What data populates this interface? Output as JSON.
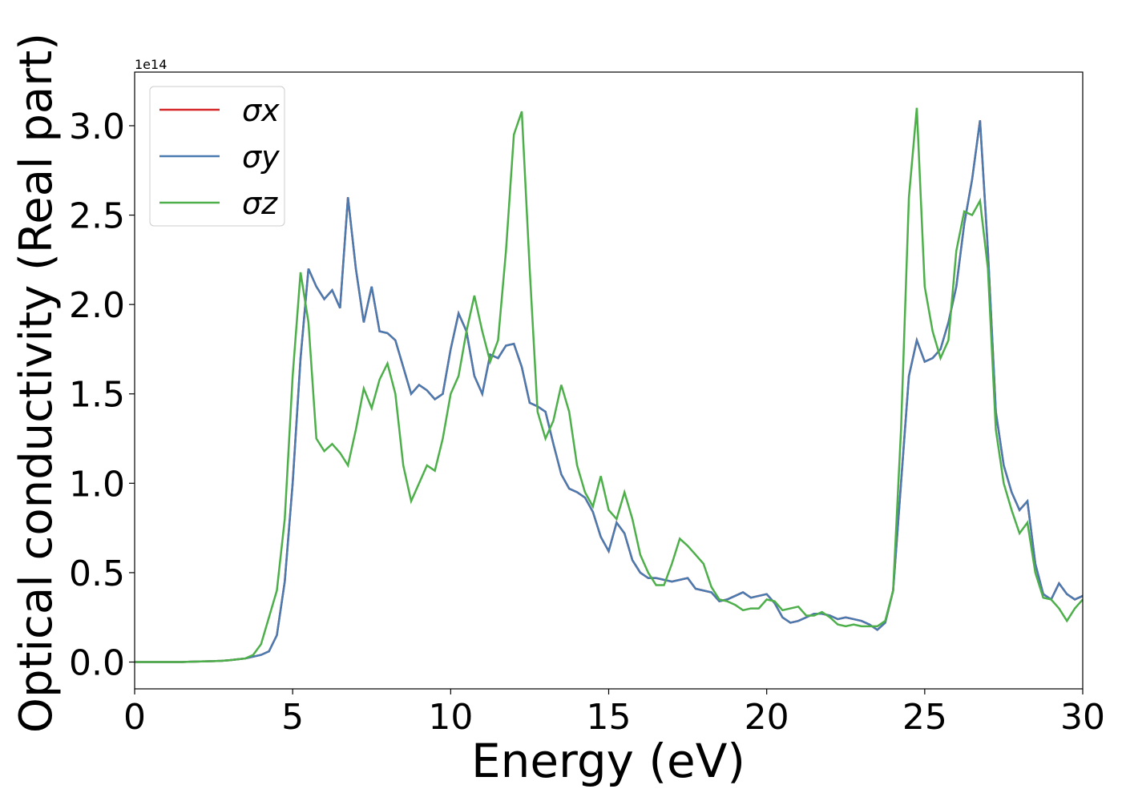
{
  "chart_data": {
    "type": "line",
    "xlabel": "Energy (eV)",
    "ylabel": "Optical conductivity (Real part)",
    "offset_label": "1e14",
    "xlim": [
      0,
      30
    ],
    "xticks": [
      0,
      5,
      10,
      15,
      20,
      25,
      30
    ],
    "ylim": [
      -0.15,
      3.3
    ],
    "yticks": [
      {
        "value": 0,
        "label": "0.0"
      },
      0.5,
      {
        "value": 1,
        "label": "1.0"
      },
      1.5,
      {
        "value": 2,
        "label": "2.0"
      },
      2.5,
      {
        "value": 3,
        "label": "3.0"
      }
    ],
    "legend": "upper left",
    "x": [
      0,
      0.25,
      0.5,
      0.75,
      1,
      1.25,
      1.5,
      1.75,
      2,
      2.25,
      2.5,
      2.75,
      3,
      3.25,
      3.5,
      3.75,
      4,
      4.25,
      4.5,
      4.75,
      5,
      5.25,
      5.5,
      5.75,
      6,
      6.25,
      6.5,
      6.75,
      7,
      7.25,
      7.5,
      7.75,
      8,
      8.25,
      8.5,
      8.75,
      9,
      9.25,
      9.5,
      9.75,
      10,
      10.25,
      10.5,
      10.75,
      11,
      11.25,
      11.5,
      11.75,
      12,
      12.25,
      12.5,
      12.75,
      13,
      13.25,
      13.5,
      13.75,
      14,
      14.25,
      14.5,
      14.75,
      15,
      15.25,
      15.5,
      15.75,
      16,
      16.25,
      16.5,
      16.75,
      17,
      17.25,
      17.5,
      17.75,
      18,
      18.25,
      18.5,
      18.75,
      19,
      19.25,
      19.5,
      19.75,
      20,
      20.25,
      20.5,
      20.75,
      21,
      21.25,
      21.5,
      21.75,
      22,
      22.25,
      22.5,
      22.75,
      23,
      23.25,
      23.5,
      23.75,
      24,
      24.25,
      24.5,
      24.75,
      25,
      25.25,
      25.5,
      25.75,
      26,
      26.25,
      26.5,
      26.75,
      27,
      27.25,
      27.5,
      27.75,
      28,
      28.25,
      28.5,
      28.75,
      29,
      29.25,
      29.5,
      29.75,
      30
    ],
    "series": [
      {
        "name": "σx",
        "color": "#d62728",
        "values": [
          0,
          0,
          0,
          0,
          0,
          0,
          0,
          0.002,
          0.003,
          0.004,
          0.005,
          0.007,
          0.01,
          0.015,
          0.02,
          0.03,
          0.04,
          0.06,
          0.15,
          0.45,
          1.0,
          1.7,
          2.2,
          2.1,
          2.03,
          2.08,
          1.98,
          2.6,
          2.2,
          1.9,
          2.1,
          1.85,
          1.84,
          1.8,
          1.65,
          1.5,
          1.55,
          1.52,
          1.47,
          1.5,
          1.75,
          1.95,
          1.85,
          1.6,
          1.5,
          1.72,
          1.7,
          1.77,
          1.78,
          1.65,
          1.45,
          1.43,
          1.4,
          1.22,
          1.05,
          0.97,
          0.95,
          0.92,
          0.84,
          0.7,
          0.62,
          0.78,
          0.72,
          0.57,
          0.5,
          0.47,
          0.47,
          0.46,
          0.45,
          0.46,
          0.47,
          0.41,
          0.4,
          0.39,
          0.34,
          0.35,
          0.37,
          0.39,
          0.36,
          0.37,
          0.38,
          0.33,
          0.25,
          0.22,
          0.23,
          0.25,
          0.27,
          0.27,
          0.26,
          0.24,
          0.25,
          0.24,
          0.23,
          0.21,
          0.18,
          0.22,
          0.4,
          1.0,
          1.6,
          1.8,
          1.68,
          1.7,
          1.75,
          1.9,
          2.1,
          2.45,
          2.7,
          3.03,
          2.3,
          1.4,
          1.1,
          0.95,
          0.85,
          0.9,
          0.55,
          0.38,
          0.35,
          0.44,
          0.38,
          0.35,
          0.37
        ]
      },
      {
        "name": "σy",
        "color": "#4a7bb0",
        "values": [
          0,
          0,
          0,
          0,
          0,
          0,
          0,
          0.002,
          0.003,
          0.004,
          0.005,
          0.007,
          0.01,
          0.015,
          0.02,
          0.03,
          0.04,
          0.06,
          0.15,
          0.45,
          1.0,
          1.7,
          2.2,
          2.1,
          2.03,
          2.08,
          1.98,
          2.6,
          2.2,
          1.9,
          2.1,
          1.85,
          1.84,
          1.8,
          1.65,
          1.5,
          1.55,
          1.52,
          1.47,
          1.5,
          1.75,
          1.95,
          1.85,
          1.6,
          1.5,
          1.72,
          1.7,
          1.77,
          1.78,
          1.65,
          1.45,
          1.43,
          1.4,
          1.22,
          1.05,
          0.97,
          0.95,
          0.92,
          0.84,
          0.7,
          0.62,
          0.78,
          0.72,
          0.57,
          0.5,
          0.47,
          0.47,
          0.46,
          0.45,
          0.46,
          0.47,
          0.41,
          0.4,
          0.39,
          0.34,
          0.35,
          0.37,
          0.39,
          0.36,
          0.37,
          0.38,
          0.33,
          0.25,
          0.22,
          0.23,
          0.25,
          0.27,
          0.27,
          0.26,
          0.24,
          0.25,
          0.24,
          0.23,
          0.21,
          0.18,
          0.22,
          0.4,
          1.0,
          1.6,
          1.8,
          1.68,
          1.7,
          1.75,
          1.9,
          2.1,
          2.45,
          2.7,
          3.03,
          2.3,
          1.4,
          1.1,
          0.95,
          0.85,
          0.9,
          0.55,
          0.38,
          0.35,
          0.44,
          0.38,
          0.35,
          0.37
        ]
      },
      {
        "name": "σz",
        "color": "#4daf4a",
        "values": [
          0,
          0,
          0,
          0,
          0,
          0,
          0,
          0.002,
          0.003,
          0.004,
          0.005,
          0.007,
          0.01,
          0.015,
          0.02,
          0.04,
          0.1,
          0.25,
          0.4,
          0.8,
          1.6,
          2.18,
          1.9,
          1.25,
          1.18,
          1.22,
          1.17,
          1.1,
          1.3,
          1.53,
          1.42,
          1.58,
          1.67,
          1.5,
          1.1,
          0.9,
          1.0,
          1.1,
          1.07,
          1.25,
          1.5,
          1.6,
          1.85,
          2.05,
          1.85,
          1.68,
          1.8,
          2.3,
          2.95,
          3.08,
          2.2,
          1.4,
          1.25,
          1.35,
          1.55,
          1.4,
          1.1,
          0.95,
          0.87,
          1.04,
          0.85,
          0.8,
          0.95,
          0.8,
          0.6,
          0.5,
          0.43,
          0.43,
          0.55,
          0.69,
          0.65,
          0.6,
          0.55,
          0.42,
          0.35,
          0.34,
          0.32,
          0.29,
          0.3,
          0.3,
          0.35,
          0.34,
          0.29,
          0.3,
          0.31,
          0.26,
          0.26,
          0.28,
          0.25,
          0.21,
          0.2,
          0.21,
          0.2,
          0.2,
          0.2,
          0.23,
          0.4,
          1.3,
          2.6,
          3.1,
          2.1,
          1.85,
          1.7,
          1.8,
          2.3,
          2.52,
          2.5,
          2.58,
          2.2,
          1.3,
          1.0,
          0.85,
          0.72,
          0.78,
          0.5,
          0.36,
          0.35,
          0.3,
          0.23,
          0.3,
          0.35
        ]
      }
    ]
  }
}
